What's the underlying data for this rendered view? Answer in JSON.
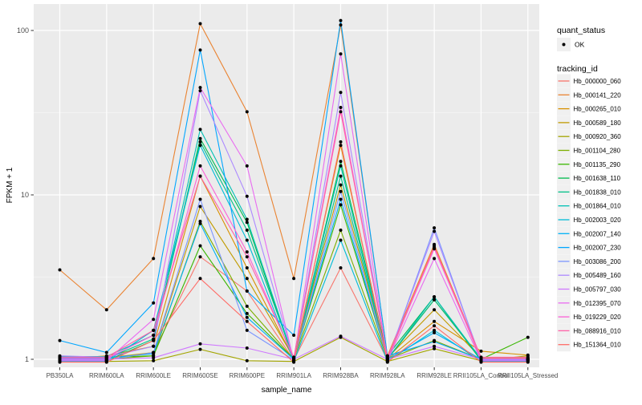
{
  "figure": {
    "background": "#FFFFFF",
    "panel_background": "#EBEBEB",
    "grid_major_color": "#FFFFFF",
    "grid_minor_color": "#FFFFFF",
    "point_color": "#000000",
    "tick_color": "#333333",
    "tick_label_color": "#4D4D4D",
    "legend_key_background": "#F0F0F0"
  },
  "legend": {
    "quant_status_title": "quant_status",
    "quant_status_items": [
      {
        "label": "OK",
        "symbol": "black-point"
      }
    ],
    "tracking_id_title": "tracking_id"
  },
  "chart_data": {
    "type": "line",
    "title": "",
    "xlabel": "sample_name",
    "ylabel": "FPKM + 1",
    "y_scale": "log10",
    "ylim": [
      0.89,
      145
    ],
    "y_ticks": [
      1,
      10,
      100
    ],
    "y_minor_ticks": [
      3.1623,
      31.623
    ],
    "grid": true,
    "legend_position": "right",
    "point_shape": "filled-circle",
    "categories": [
      "PB350LA",
      "RRIM600LA",
      "RRIM600LE",
      "RRIM600SE",
      "RRIM600PE",
      "RRIM901LA",
      "RRIM928BA",
      "RRIM928LA",
      "RRIM928LE",
      "RRII105LA_Control",
      "RRII105LA_Stressed"
    ],
    "series": [
      {
        "name": "Hb_000000_060",
        "color": "#F8766D",
        "values": [
          0.99,
          0.99,
          1.1,
          4.2,
          2.6,
          0.99,
          3.6,
          0.99,
          4.9,
          0.99,
          0.99
        ]
      },
      {
        "name": "Hb_000141_220",
        "color": "#EA8331",
        "values": [
          3.5,
          2.0,
          4.1,
          110,
          32,
          3.1,
          108,
          1.05,
          5.0,
          1.02,
          1.0
        ]
      },
      {
        "name": "Hb_000265_010",
        "color": "#D89000",
        "values": [
          1.0,
          1.05,
          1.2,
          13,
          3.6,
          1.0,
          20,
          1.0,
          1.7,
          1.12,
          1.06
        ]
      },
      {
        "name": "Hb_000589_180",
        "color": "#C09B00",
        "values": [
          1.02,
          1.02,
          1.1,
          8.5,
          3.1,
          1.02,
          11.5,
          1.02,
          2.0,
          1.02,
          1.02
        ]
      },
      {
        "name": "Hb_000920_360",
        "color": "#A3A500",
        "values": [
          0.97,
          0.97,
          0.98,
          1.15,
          0.98,
          0.97,
          1.36,
          0.97,
          1.16,
          0.98,
          1.05
        ]
      },
      {
        "name": "Hb_001104_280",
        "color": "#7CAE00",
        "values": [
          1.0,
          1.0,
          1.05,
          6.9,
          2.1,
          1.0,
          6.1,
          1.0,
          1.3,
          1.0,
          1.0
        ]
      },
      {
        "name": "Hb_001135_290",
        "color": "#39B600",
        "values": [
          1.03,
          1.03,
          1.05,
          4.9,
          1.9,
          1.0,
          8.7,
          1.0,
          2.3,
          1.0,
          1.36
        ]
      },
      {
        "name": "Hb_001638_110",
        "color": "#00BB4E",
        "values": [
          0.98,
          0.98,
          1.3,
          22,
          6.8,
          0.98,
          16,
          1.05,
          2.4,
          0.98,
          0.98
        ]
      },
      {
        "name": "Hb_001838_010",
        "color": "#00C087",
        "values": [
          1.01,
          1.01,
          1.33,
          21,
          6.1,
          1.01,
          13,
          1.01,
          2.3,
          1.01,
          1.01
        ]
      },
      {
        "name": "Hb_001864_010",
        "color": "#00C0B4",
        "values": [
          1.04,
          1.04,
          1.4,
          25,
          7.1,
          1.0,
          15,
          1.0,
          2.4,
          1.0,
          1.0
        ]
      },
      {
        "name": "Hb_002003_020",
        "color": "#00BCD8",
        "values": [
          0.97,
          0.97,
          1.5,
          20,
          5.3,
          0.97,
          5.3,
          0.97,
          1.5,
          0.97,
          0.97
        ]
      },
      {
        "name": "Hb_002007_140",
        "color": "#00B0F6",
        "values": [
          1.02,
          1.02,
          1.08,
          6.7,
          1.8,
          1.0,
          9.4,
          1.0,
          1.45,
          1.0,
          1.0
        ]
      },
      {
        "name": "Hb_002007_230",
        "color": "#00A6FF",
        "values": [
          1.3,
          1.1,
          2.2,
          76,
          2.6,
          1.4,
          115,
          1.05,
          1.28,
          1.0,
          1.0
        ]
      },
      {
        "name": "Hb_003086_200",
        "color": "#7C96FF",
        "values": [
          0.99,
          0.99,
          1.1,
          9.4,
          1.5,
          0.99,
          10.5,
          0.99,
          6.3,
          0.99,
          0.99
        ]
      },
      {
        "name": "Hb_005489_160",
        "color": "#AC88FF",
        "values": [
          1.05,
          1.03,
          1.2,
          43,
          9.8,
          1.0,
          42,
          1.0,
          6.0,
          1.0,
          1.0
        ]
      },
      {
        "name": "Hb_005797_030",
        "color": "#CF78FF",
        "values": [
          1.0,
          1.0,
          1.02,
          1.24,
          1.17,
          1.0,
          1.38,
          1.0,
          1.2,
          1.0,
          1.0
        ]
      },
      {
        "name": "Hb_012395_070",
        "color": "#E96BF1",
        "values": [
          0.98,
          0.98,
          1.75,
          45,
          15,
          0.98,
          72,
          0.98,
          4.1,
          0.98,
          0.98
        ]
      },
      {
        "name": "Hb_019229_020",
        "color": "#FB61D7",
        "values": [
          1.01,
          1.01,
          1.4,
          15,
          4.5,
          1.01,
          34,
          1.01,
          4.7,
          1.01,
          1.01
        ]
      },
      {
        "name": "Hb_088916_010",
        "color": "#FF62A8",
        "values": [
          1.03,
          1.03,
          1.5,
          13,
          4.2,
          1.03,
          32,
          1.03,
          4.8,
          1.03,
          1.03
        ]
      },
      {
        "name": "Hb_151364_010",
        "color": "#FF6C67",
        "values": [
          0.96,
          0.96,
          1.3,
          3.1,
          1.7,
          0.96,
          21,
          0.96,
          1.6,
          0.96,
          0.96
        ]
      }
    ]
  }
}
